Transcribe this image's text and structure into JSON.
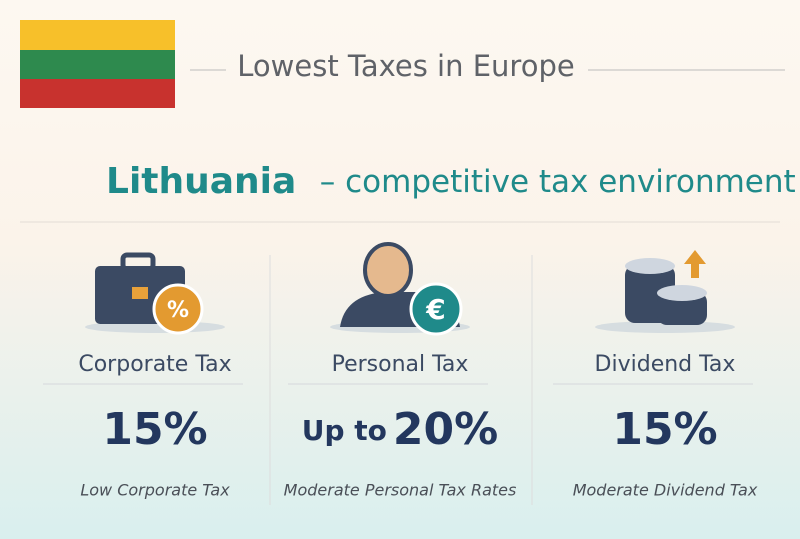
{
  "header": {
    "title": "Lowest Taxes in Europe",
    "country": "Lithuania",
    "tagline": "– competitive tax environment"
  },
  "cards": [
    {
      "title": "Corporate Tax",
      "prefix": null,
      "value": "15%",
      "caption": "Low Corporate Tax"
    },
    {
      "title": "Personal Tax",
      "prefix": "Up to",
      "value": "20%",
      "caption": "Moderate Personal Tax Rates"
    },
    {
      "title": "Dividend Tax",
      "prefix": null,
      "value": "15%",
      "caption": "Moderate Dividend Tax"
    }
  ]
}
